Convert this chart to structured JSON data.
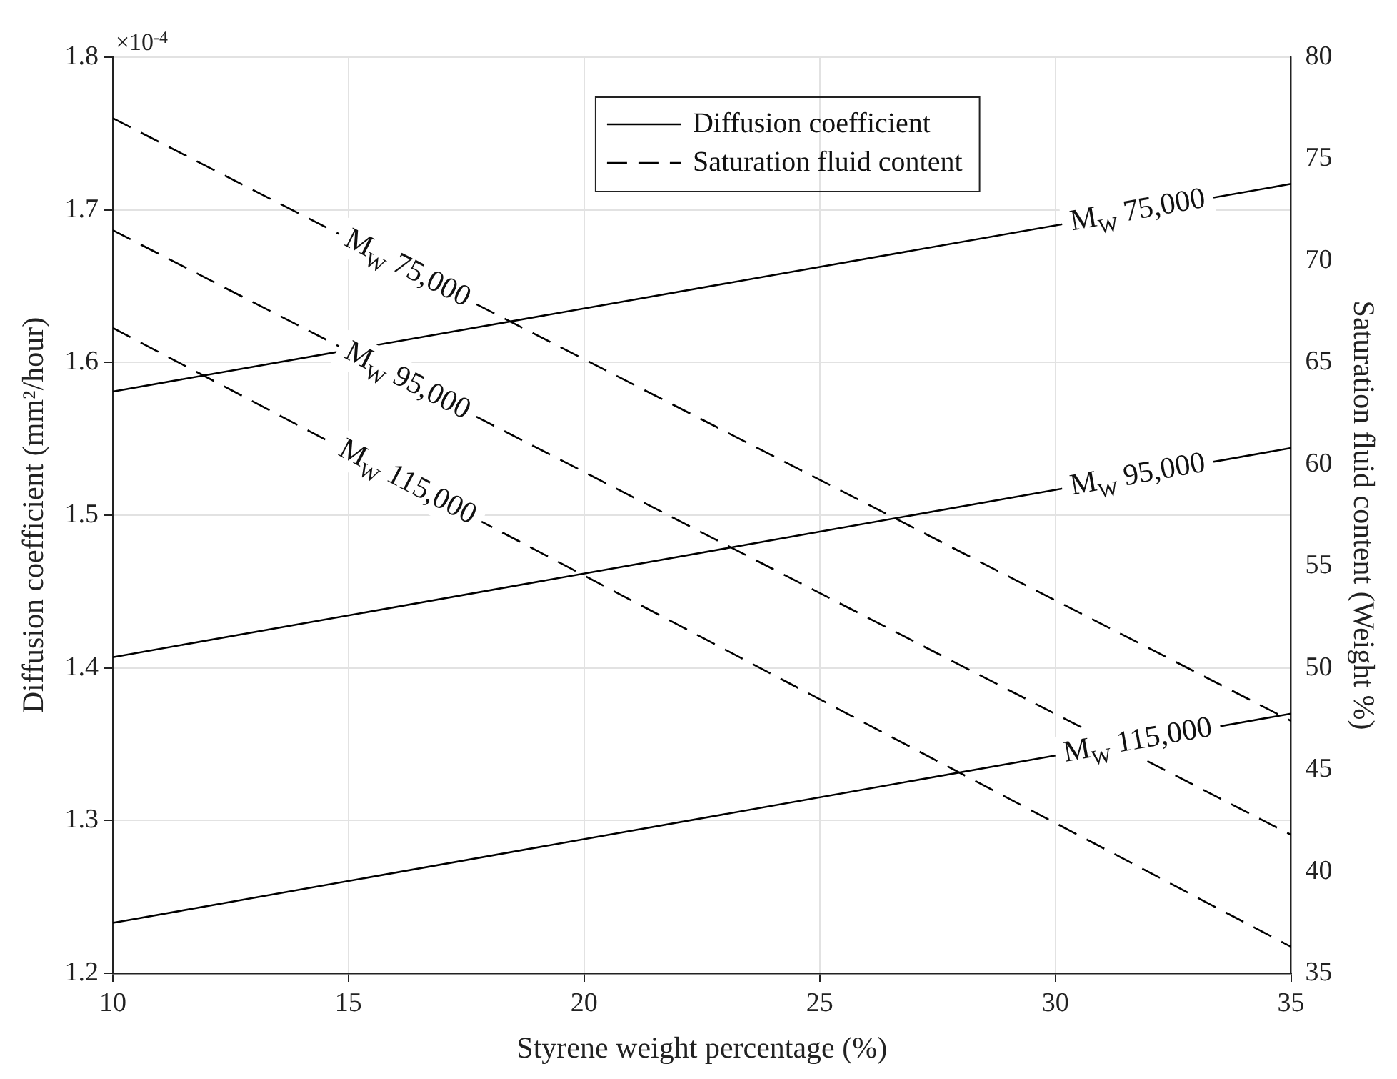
{
  "chart_data": {
    "type": "line",
    "xlabel": "Styrene weight percentage (%)",
    "ylabel": "Diffusion coefficient (mm²/hour)",
    "y2label": "Saturation fluid content (Weight %)",
    "annotations": [
      "×10$^{-4}$",
      "Diffusion coefficient",
      "Saturation fluid content"
    ],
    "x": [
      10,
      35
    ],
    "xlim": [
      10,
      35
    ],
    "xticks": [
      10,
      15,
      20,
      25,
      30,
      35
    ],
    "ylim": [
      1.2,
      1.8
    ],
    "yticks": [
      1.2,
      1.3,
      1.4,
      1.5,
      1.6,
      1.7,
      1.8
    ],
    "y2lim": [
      35,
      80
    ],
    "y2ticks": [
      35,
      40,
      45,
      50,
      55,
      60,
      65,
      70,
      75,
      80
    ],
    "grid": true,
    "legend": "top",
    "marker": "none",
    "series": [
      {
        "name": "M$_{W}$ 75,000",
        "color": "#000000",
        "values": [
          1.581,
          1.717
        ],
        "line_style": "solid"
      },
      {
        "name": "M$_{W}$ 95,000",
        "color": "#000000",
        "values": [
          1.407,
          1.544
        ],
        "line_style": "solid"
      },
      {
        "name": "M$_{W}$ 115,000",
        "color": "#000000",
        "values": [
          1.233,
          1.37
        ],
        "line_style": "solid"
      },
      {
        "name": "M$_{W}$ 75,000",
        "color": "#000000",
        "values": [
          77.0,
          47.4
        ],
        "line_style": "dashed",
        "axis": "y2"
      },
      {
        "name": "M$_{W}$ 95,000",
        "color": "#000000",
        "values": [
          71.5,
          41.8
        ],
        "line_style": "dashed",
        "axis": "y2"
      },
      {
        "name": "M$_{W}$ 115,000",
        "color": "#000000",
        "values": [
          66.7,
          36.3
        ],
        "line_style": "dashed",
        "axis": "y2"
      }
    ]
  }
}
